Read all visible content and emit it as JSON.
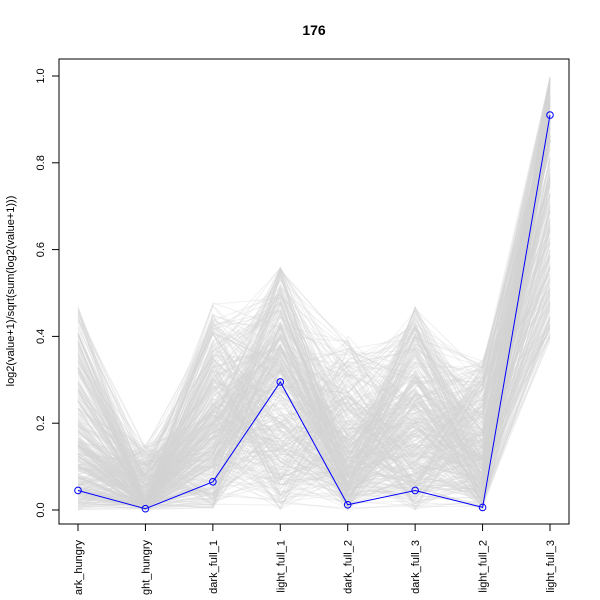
{
  "chart_data": {
    "type": "line",
    "title": "176",
    "xlabel": "",
    "ylabel": "log2(value+1)/sqrt(sum(log2(value+1)))",
    "categories": [
      "dark_hungry",
      "light_hungry",
      "dark_full_1",
      "light_full_1",
      "dark_full_2",
      "dark_full_3",
      "light_full_2",
      "light_full_3"
    ],
    "category_labels_visible": [
      "ark_hungry",
      "ght_hungry",
      "dark_full_1",
      "light_full_1",
      "dark_full_2",
      "dark_full_3",
      "light_full_2",
      "light_full_3"
    ],
    "ylim": [
      0,
      1.0
    ],
    "yticks": [
      "0.0",
      "0.2",
      "0.4",
      "0.6",
      "0.8",
      "1.0"
    ],
    "series": [
      {
        "values": [
          0.045,
          0.003,
          0.065,
          0.295,
          0.012,
          0.045,
          0.006,
          0.91
        ],
        "color": "#0000ff",
        "highlighted": true
      }
    ],
    "background_series_color": "#d3d3d3",
    "background_series_count": 400,
    "background_ranges": {
      "min": [
        0.0,
        0.0,
        0.0,
        0.0,
        0.0,
        0.0,
        0.0,
        0.39
      ],
      "max": [
        0.47,
        0.15,
        0.48,
        0.56,
        0.4,
        0.47,
        0.35,
        1.0
      ],
      "typical": [
        0.15,
        0.02,
        0.2,
        0.32,
        0.12,
        0.2,
        0.12,
        0.85
      ]
    },
    "grid": false,
    "legend": "none"
  }
}
